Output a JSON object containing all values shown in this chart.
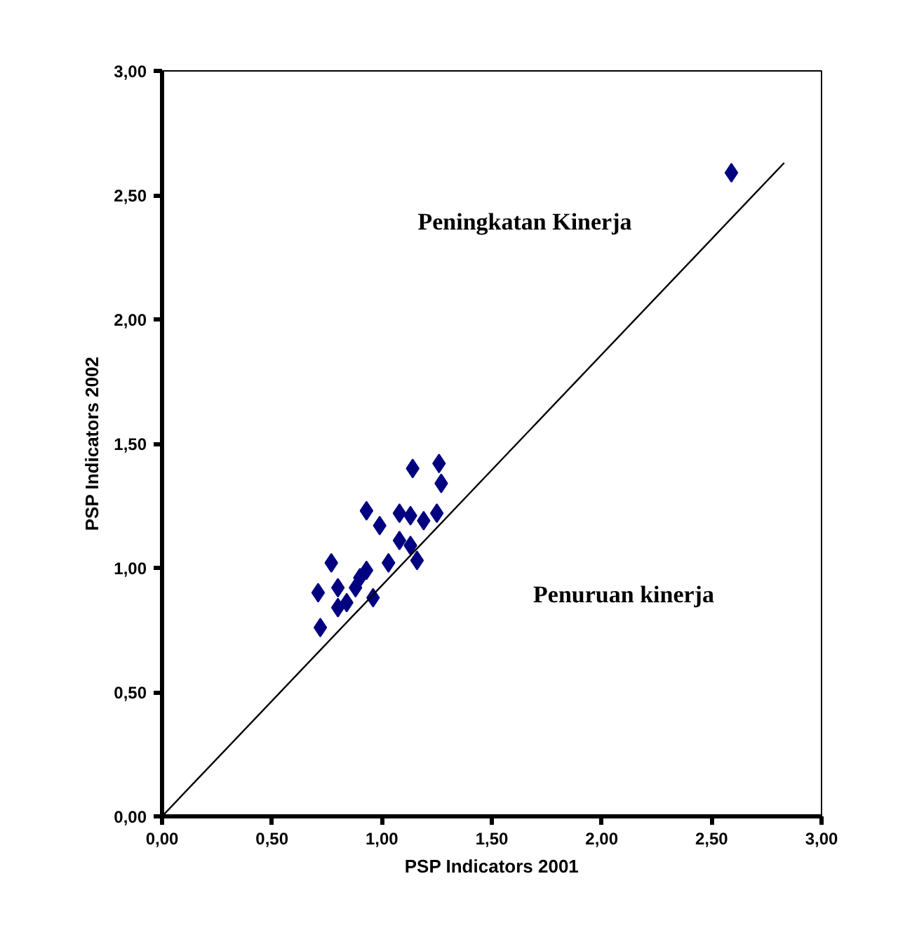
{
  "chart_data": {
    "type": "scatter",
    "xlabel": "PSP Indicators 2001",
    "ylabel": "PSP Indicators 2002",
    "annotations": [
      "Peningkatan Kinerja",
      "Penuruan kinerja"
    ],
    "xlim": [
      0,
      3
    ],
    "ylim": [
      0,
      3
    ],
    "xticks": [
      {
        "value": 0,
        "label": "0,00"
      },
      {
        "value": 0.5,
        "label": "0,50"
      },
      {
        "value": 1,
        "label": "1,00"
      },
      {
        "value": 1.5,
        "label": "1,50"
      },
      {
        "value": 2,
        "label": "2,00"
      },
      {
        "value": 2.5,
        "label": "2,50"
      },
      {
        "value": 3,
        "label": "3,00"
      }
    ],
    "yticks": [
      {
        "value": 0,
        "label": "0,00"
      },
      {
        "value": 0.5,
        "label": "0,50"
      },
      {
        "value": 1,
        "label": "1,00"
      },
      {
        "value": 1.5,
        "label": "1,50"
      },
      {
        "value": 2,
        "label": "2,00"
      },
      {
        "value": 2.5,
        "label": "2,50"
      },
      {
        "value": 3,
        "label": "3,00"
      }
    ],
    "grid": false,
    "marker": "diamond",
    "series": [
      {
        "color": "#000080",
        "x": [
          1.14,
          1.26,
          1.27,
          0.93,
          0.99,
          1.08,
          1.13,
          1.19,
          1.25,
          1.08,
          1.13,
          1.16,
          1.03,
          0.77,
          0.71,
          0.93,
          0.96,
          0.8,
          0.88,
          0.8,
          0.72,
          0.84,
          0.9,
          2.59
        ],
        "values": [
          1.4,
          1.42,
          1.34,
          1.23,
          1.17,
          1.22,
          1.21,
          1.19,
          1.22,
          1.11,
          1.09,
          1.03,
          1.02,
          1.02,
          0.9,
          0.99,
          0.88,
          0.92,
          0.92,
          0.84,
          0.76,
          0.86,
          0.96,
          2.59
        ]
      },
      {
        "type": "line",
        "marker": "none",
        "color": "#000000",
        "x": [
          0,
          2.83
        ],
        "values": [
          0,
          2.63
        ]
      }
    ]
  }
}
